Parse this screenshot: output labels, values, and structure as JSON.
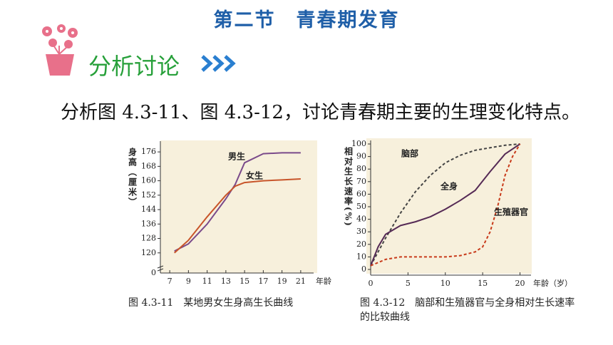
{
  "header": {
    "title": "第二节　青春期发育",
    "section": "分析讨论"
  },
  "paragraph": "分析图 4.3-11、图 4.3-12，讨论青春期主要的生理变化特点。",
  "chart_data": [
    {
      "type": "line",
      "caption": "图 4.3-11　某地男女生身高生长曲线",
      "x_label": "年龄（岁）",
      "y_label": "身高（厘米）",
      "axis_break_label": "0",
      "xlim": [
        6,
        22
      ],
      "xticks": [
        7,
        9,
        11,
        13,
        15,
        17,
        19,
        21
      ],
      "ylim": [
        112,
        180
      ],
      "yticks": [
        120,
        128,
        136,
        144,
        152,
        160,
        168,
        176
      ],
      "series": [
        {
          "name": "男生",
          "color": "#7a4a8a",
          "dash": false,
          "x": [
            7.5,
            9,
            11,
            13,
            14,
            15,
            17,
            19,
            21
          ],
          "values": [
            121,
            125,
            136,
            150,
            158,
            170,
            175,
            175.5,
            175.5
          ]
        },
        {
          "name": "女生",
          "color": "#c8552a",
          "dash": false,
          "x": [
            7.5,
            9,
            11,
            13,
            14,
            15,
            17,
            19,
            21
          ],
          "values": [
            120,
            127,
            140,
            152,
            157,
            159,
            160,
            160.5,
            161
          ]
        }
      ]
    },
    {
      "type": "line",
      "caption": "图 4.3-12　脑部和生殖器官与全身相对生长速率的比较曲线",
      "x_label": "年龄（岁）",
      "y_label": "相对生长速率(%)",
      "xlim": [
        0,
        21
      ],
      "xticks": [
        0,
        5,
        10,
        15,
        20
      ],
      "ylim": [
        0,
        100
      ],
      "yticks": [
        0,
        10,
        20,
        30,
        40,
        50,
        60,
        70,
        80,
        90,
        100
      ],
      "series": [
        {
          "name": "脑部",
          "color": "#444444",
          "dash": true,
          "x": [
            0,
            2,
            4,
            6,
            8,
            10,
            12,
            14,
            16,
            18,
            20
          ],
          "values": [
            3,
            25,
            45,
            62,
            75,
            85,
            91,
            95,
            97,
            99,
            100
          ]
        },
        {
          "name": "全身",
          "color": "#552a55",
          "dash": false,
          "x": [
            0,
            1,
            2,
            4,
            6,
            8,
            10,
            12,
            14,
            16,
            18,
            20
          ],
          "values": [
            3,
            18,
            28,
            35,
            38,
            42,
            48,
            55,
            63,
            78,
            92,
            100
          ]
        },
        {
          "name": "生殖器官",
          "color": "#c83a1a",
          "dash": true,
          "x": [
            0,
            2,
            4,
            6,
            8,
            10,
            12,
            14,
            15,
            16,
            17,
            18,
            19,
            20
          ],
          "values": [
            3,
            8,
            10,
            10,
            10,
            10,
            11,
            14,
            18,
            30,
            50,
            75,
            90,
            100
          ]
        }
      ]
    }
  ]
}
